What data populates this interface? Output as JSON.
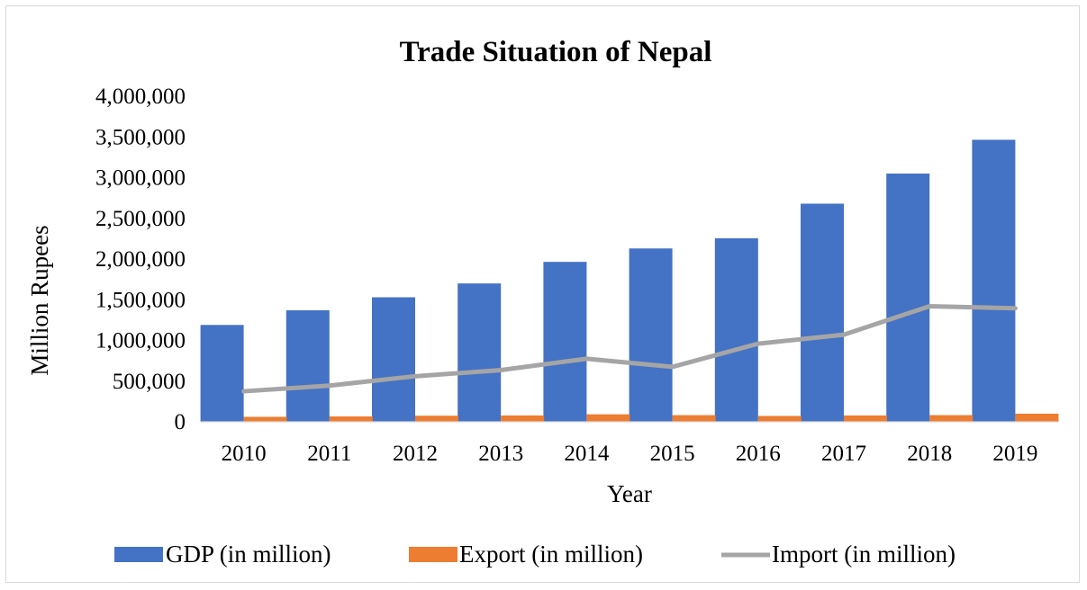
{
  "chart_data": {
    "type": "bar",
    "title": "Trade Situation of Nepal",
    "xlabel": "Year",
    "ylabel": "Million Rupees",
    "categories": [
      "2010",
      "2011",
      "2012",
      "2013",
      "2014",
      "2015",
      "2016",
      "2017",
      "2018",
      "2019"
    ],
    "ylim": [
      0,
      4000000
    ],
    "yticks": [
      0,
      500000,
      1000000,
      1500000,
      2000000,
      2500000,
      3000000,
      3500000,
      4000000
    ],
    "ytick_labels": [
      "0",
      "500,000",
      "1,000,000",
      "1,500,000",
      "2,000,000",
      "2,500,000",
      "3,000,000",
      "3,500,000",
      "4,000,000"
    ],
    "grid": false,
    "legend_position": "bottom",
    "series": [
      {
        "name": "GDP (in million)",
        "kind": "bar",
        "color": "#4472c4",
        "values": [
          1190000,
          1370000,
          1530000,
          1700000,
          1965000,
          2130000,
          2255000,
          2680000,
          3050000,
          3465000
        ]
      },
      {
        "name": "Export (in million)",
        "kind": "bar",
        "color": "#ed7d31",
        "values": [
          61000,
          66000,
          75000,
          78000,
          92000,
          82000,
          72000,
          78000,
          82000,
          100000
        ]
      },
      {
        "name": "Import (in million)",
        "kind": "line",
        "color": "#a5a5a5",
        "values": [
          375000,
          445000,
          560000,
          635000,
          775000,
          675000,
          960000,
          1070000,
          1420000,
          1395000
        ]
      }
    ]
  }
}
